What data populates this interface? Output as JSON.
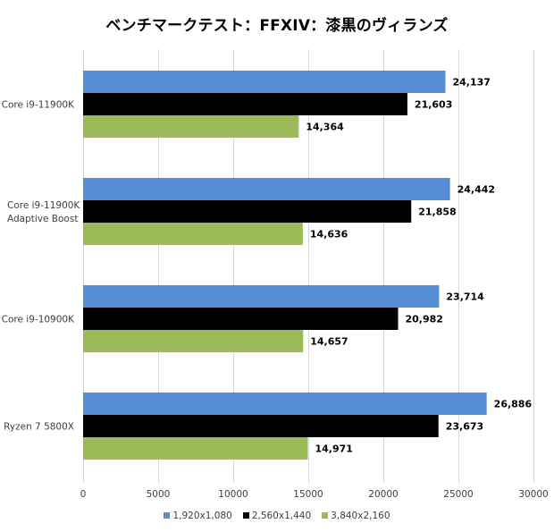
{
  "chart_data": {
    "type": "bar",
    "orientation": "horizontal",
    "title": "ベンチマークテスト：FFXIV：漆黒のヴィランズ",
    "xlabel": "",
    "ylabel": "",
    "categories": [
      [
        "Core i9-11900K"
      ],
      [
        "Core i9-11900K",
        "Adaptive Boost"
      ],
      [
        "Core i9-10900K"
      ],
      [
        "Ryzen 7 5800X"
      ]
    ],
    "series": [
      {
        "name": "1,920x1,080",
        "color": "#558ED5",
        "values": [
          24137,
          24442,
          23714,
          26886
        ],
        "labels": [
          "24,137",
          "24,442",
          "23,714",
          "26,886"
        ]
      },
      {
        "name": "2,560x1,440",
        "color": "#000000",
        "values": [
          21603,
          21858,
          20982,
          23673
        ],
        "labels": [
          "21,603",
          "21,858",
          "20,982",
          "23,673"
        ]
      },
      {
        "name": "3,840x2,160",
        "color": "#9BBB59",
        "values": [
          14364,
          14636,
          14657,
          14971
        ],
        "labels": [
          "14,364",
          "14,636",
          "14,657",
          "14,971"
        ]
      }
    ],
    "xlim": [
      0,
      30000
    ],
    "xticks": [
      0,
      5000,
      10000,
      15000,
      20000,
      25000,
      30000
    ],
    "xtick_labels": [
      "0",
      "5000",
      "10000",
      "15000",
      "20000",
      "25000",
      "30000"
    ],
    "grid": true,
    "legend_position": "bottom",
    "gridline_color": "#D9D9D9"
  }
}
